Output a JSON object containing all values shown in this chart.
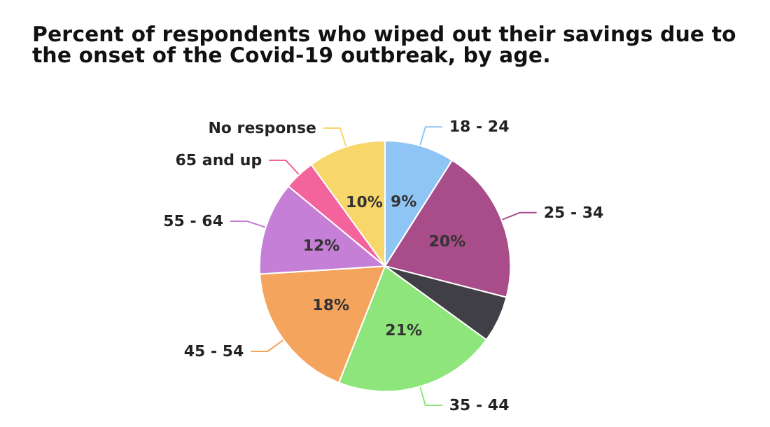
{
  "chart_data": {
    "type": "pie",
    "title": "Percent of respondents who wiped out their savings due to the onset of the Covid-19 outbreak, by age.",
    "categories": [
      "18 - 24",
      "25 - 34",
      null,
      "35 - 44",
      "45 - 54",
      "55 - 64",
      "65 and up",
      "No response"
    ],
    "values": [
      9,
      20,
      6,
      21,
      18,
      12,
      4,
      10
    ],
    "colors": [
      "#8ec5f5",
      "#a94c8a",
      "#3f3f45",
      "#8ee57c",
      "#f5a45d",
      "#c57fd6",
      "#f2649b",
      "#f7d76a"
    ],
    "value_labels": [
      "9%",
      "20%",
      null,
      "21%",
      "18%",
      "12%",
      null,
      "10%"
    ],
    "legend": false
  }
}
